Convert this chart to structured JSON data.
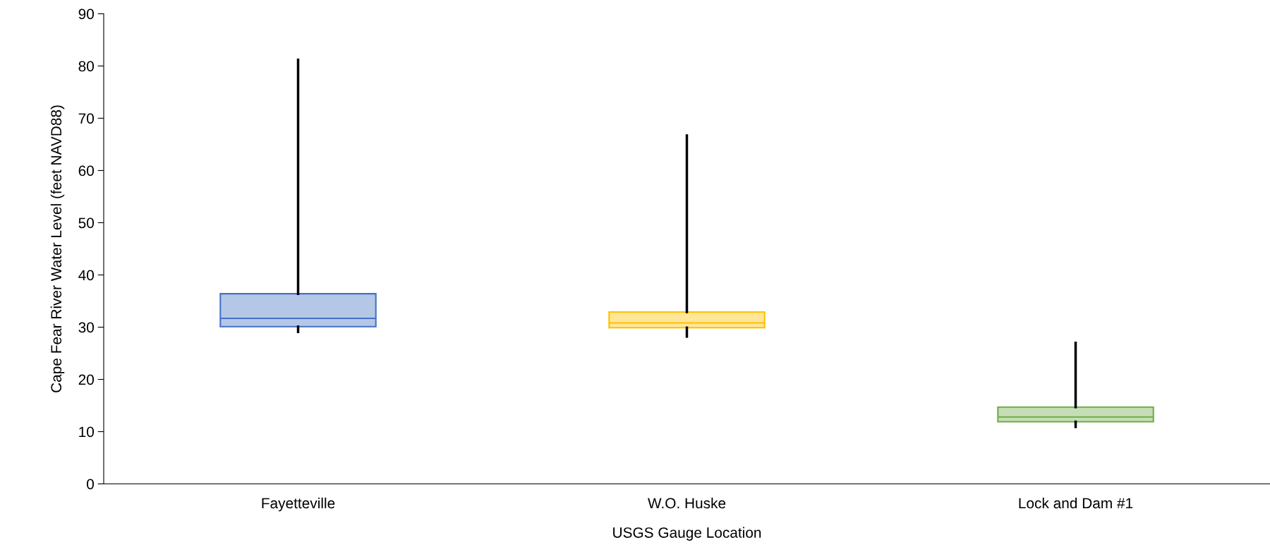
{
  "chart_data": {
    "type": "box",
    "xlabel": "USGS Gauge Location",
    "ylabel": "Cape Fear River Water Level (feet NAVD88)",
    "categories": [
      "Fayetteville",
      "W.O. Huske",
      "Lock and Dam #1"
    ],
    "colors": [
      "#4472c4",
      "#ffc000",
      "#70ad47"
    ],
    "boxes": [
      {
        "low": 29.1,
        "q1": 30.1,
        "median": 31.7,
        "q3": 36.4,
        "high": 81.2
      },
      {
        "low": 28.2,
        "q1": 29.9,
        "median": 30.8,
        "q3": 32.9,
        "high": 66.7
      },
      {
        "low": 10.9,
        "q1": 11.9,
        "median": 12.8,
        "q3": 14.7,
        "high": 27.0
      }
    ],
    "ylim": [
      0,
      90
    ],
    "yticks": [
      0,
      10,
      20,
      30,
      40,
      50,
      60,
      70,
      80,
      90
    ]
  }
}
